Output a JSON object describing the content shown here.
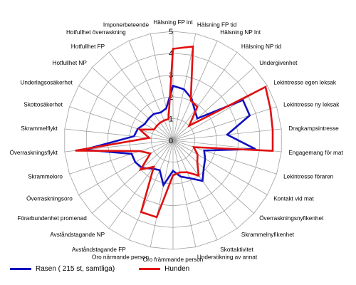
{
  "chart_data": {
    "type": "radar",
    "categories": [
      "Hälsning FP int",
      "Hälsning FP tid",
      "Hälsning NP Int",
      "Hälsning NP tid",
      "Undergivenhet",
      "Lekintresse egen leksak",
      "Lekintresse ny leksak",
      "Dragkampsintresse",
      "Engagemang för mat",
      "Lekintresse föraren",
      "Kontakt vid mat",
      "Överraskningsnyfikenhet",
      "Skrammelnyfikenhet",
      "Skottaktivitet",
      "Undersökning av annat",
      "Oro främmande person",
      "Oro närmande person",
      "Avståndstagande FP",
      "Avståndstagande NP",
      "Förarbundenhet promenad",
      "Överraskningsoro",
      "Skrammeloro",
      "Överraskningsflykt",
      "Skrammelflykt",
      "Skottosäkerhet",
      "Underlagsosäkerhet",
      "Hotfullhet NP",
      "Hotfullhet FP",
      "Hotfullhet överraskning",
      "Imponerbeteende"
    ],
    "rlim": [
      0,
      5
    ],
    "ticks": [
      "0",
      "1",
      "2",
      "3",
      "4",
      "5"
    ],
    "grid": true,
    "series": [
      {
        "name": "Rasen ( 215 st, samtliga)",
        "color": "#1010c0",
        "values": [
          2.5,
          2.4,
          2.1,
          1.7,
          1.5,
          3.7,
          3.7,
          2.5,
          3.8,
          1.5,
          1.7,
          1.9,
          2.3,
          1.9,
          1.7,
          1.4,
          2.1,
          1.5,
          1.6,
          1.9,
          2.0,
          2.0,
          4.1,
          1.8,
          1.7,
          1.5,
          1.5,
          1.5,
          1.4,
          1.5
        ]
      },
      {
        "name": "Hunden",
        "color": "#e01010",
        "values": [
          4.2,
          4.4,
          2.0,
          1.9,
          1.0,
          4.9,
          4.7,
          4.6,
          4.6,
          1.0,
          1.3,
          1.5,
          2.0,
          1.6,
          1.5,
          1.6,
          3.6,
          3.6,
          1.5,
          2.0,
          1.2,
          1.6,
          4.5,
          1.1,
          1.6,
          1.0,
          1.0,
          1.0,
          1.0,
          1.0
        ]
      }
    ]
  }
}
